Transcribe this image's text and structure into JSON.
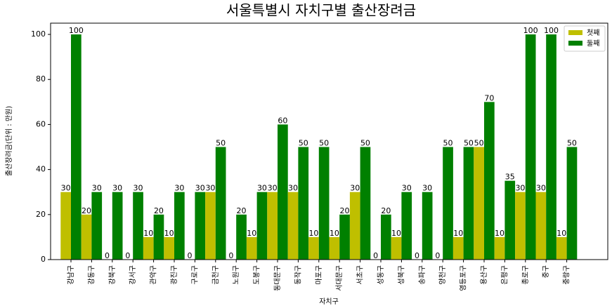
{
  "chart_data": {
    "type": "bar",
    "title": "서울특별시 자치구별 출산장려금",
    "x_label": "자치구",
    "y_label": "출산장려금(단위 : 만원)",
    "categories": [
      "강남구",
      "강동구",
      "강북구",
      "강서구",
      "관악구",
      "광진구",
      "구로구",
      "금천구",
      "노원구",
      "도봉구",
      "동대문구",
      "동작구",
      "마포구",
      "서대문구",
      "서초구",
      "성동구",
      "성북구",
      "송파구",
      "양천구",
      "영등포구",
      "용산구",
      "은평구",
      "종로구",
      "중구",
      "중랑구"
    ],
    "series": [
      {
        "name": "첫째",
        "color": "#bfbf00",
        "values": [
          30,
          20,
          0,
          0,
          10,
          10,
          0,
          30,
          0,
          10,
          30,
          30,
          10,
          10,
          30,
          0,
          10,
          0,
          0,
          10,
          50,
          10,
          30,
          30,
          10
        ]
      },
      {
        "name": "둘째",
        "color": "#008000",
        "values": [
          100,
          30,
          30,
          30,
          20,
          30,
          30,
          50,
          20,
          30,
          60,
          50,
          50,
          20,
          50,
          20,
          30,
          30,
          50,
          50,
          70,
          35,
          100,
          100,
          50
        ]
      }
    ],
    "ylim": [
      0,
      105
    ],
    "yticks": [
      0,
      20,
      40,
      60,
      80,
      100
    ],
    "legend": "upper right"
  }
}
